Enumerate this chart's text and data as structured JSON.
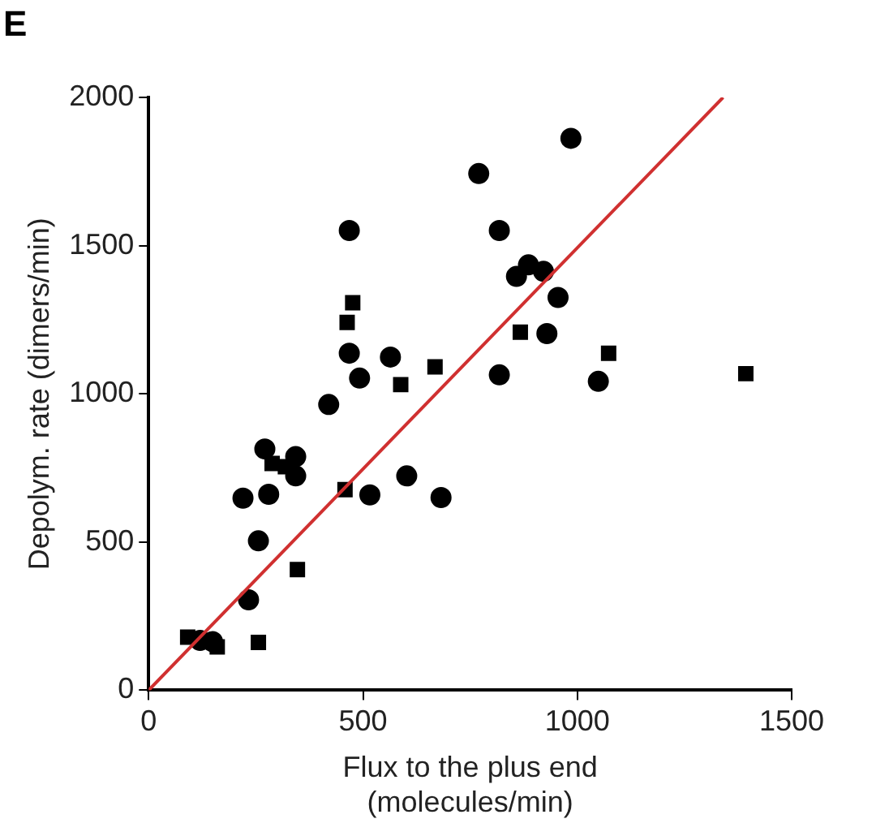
{
  "chart_data": {
    "type": "scatter",
    "xlabel": "Flux to the plus end\n(molecules/min)",
    "ylabel": "Depolym. rate (dimers/min)",
    "annotations": [
      "E"
    ],
    "xlim": [
      0,
      1500
    ],
    "xticks": [
      0,
      500,
      1000,
      1500
    ],
    "ylim": [
      0,
      2000
    ],
    "yticks": [
      0,
      500,
      1000,
      1500,
      2000
    ],
    "grid": false,
    "legend": false,
    "series": [
      {
        "type": "scatter",
        "marker": "circle",
        "color": "#000000",
        "x": [
          985,
          770,
          468,
          818,
          858,
          886,
          921,
          955,
          929,
          818,
          1049,
          468,
          492,
          564,
          420,
          271,
          343,
          343,
          280,
          220,
          516,
          602,
          682,
          256,
          233,
          120,
          149
        ],
        "values": [
          1862,
          1743,
          1551,
          1551,
          1396,
          1435,
          1413,
          1325,
          1203,
          1064,
          1042,
          1137,
          1053,
          1124,
          964,
          814,
          788,
          723,
          661,
          648,
          659,
          723,
          650,
          504,
          305,
          168,
          164
        ]
      },
      {
        "type": "scatter",
        "marker": "square",
        "color": "#000000",
        "x": [
          476,
          463,
          668,
          588,
          867,
          1073,
          1393,
          288,
          319,
          458,
          347,
          256,
          91,
          160
        ],
        "values": [
          1307,
          1241,
          1091,
          1031,
          1208,
          1137,
          1068,
          765,
          754,
          677,
          407,
          161,
          179,
          146
        ]
      },
      {
        "type": "line",
        "marker": "none",
        "color": "#d03030",
        "x": [
          0,
          1340
        ],
        "values": [
          0,
          2000
        ]
      }
    ]
  }
}
